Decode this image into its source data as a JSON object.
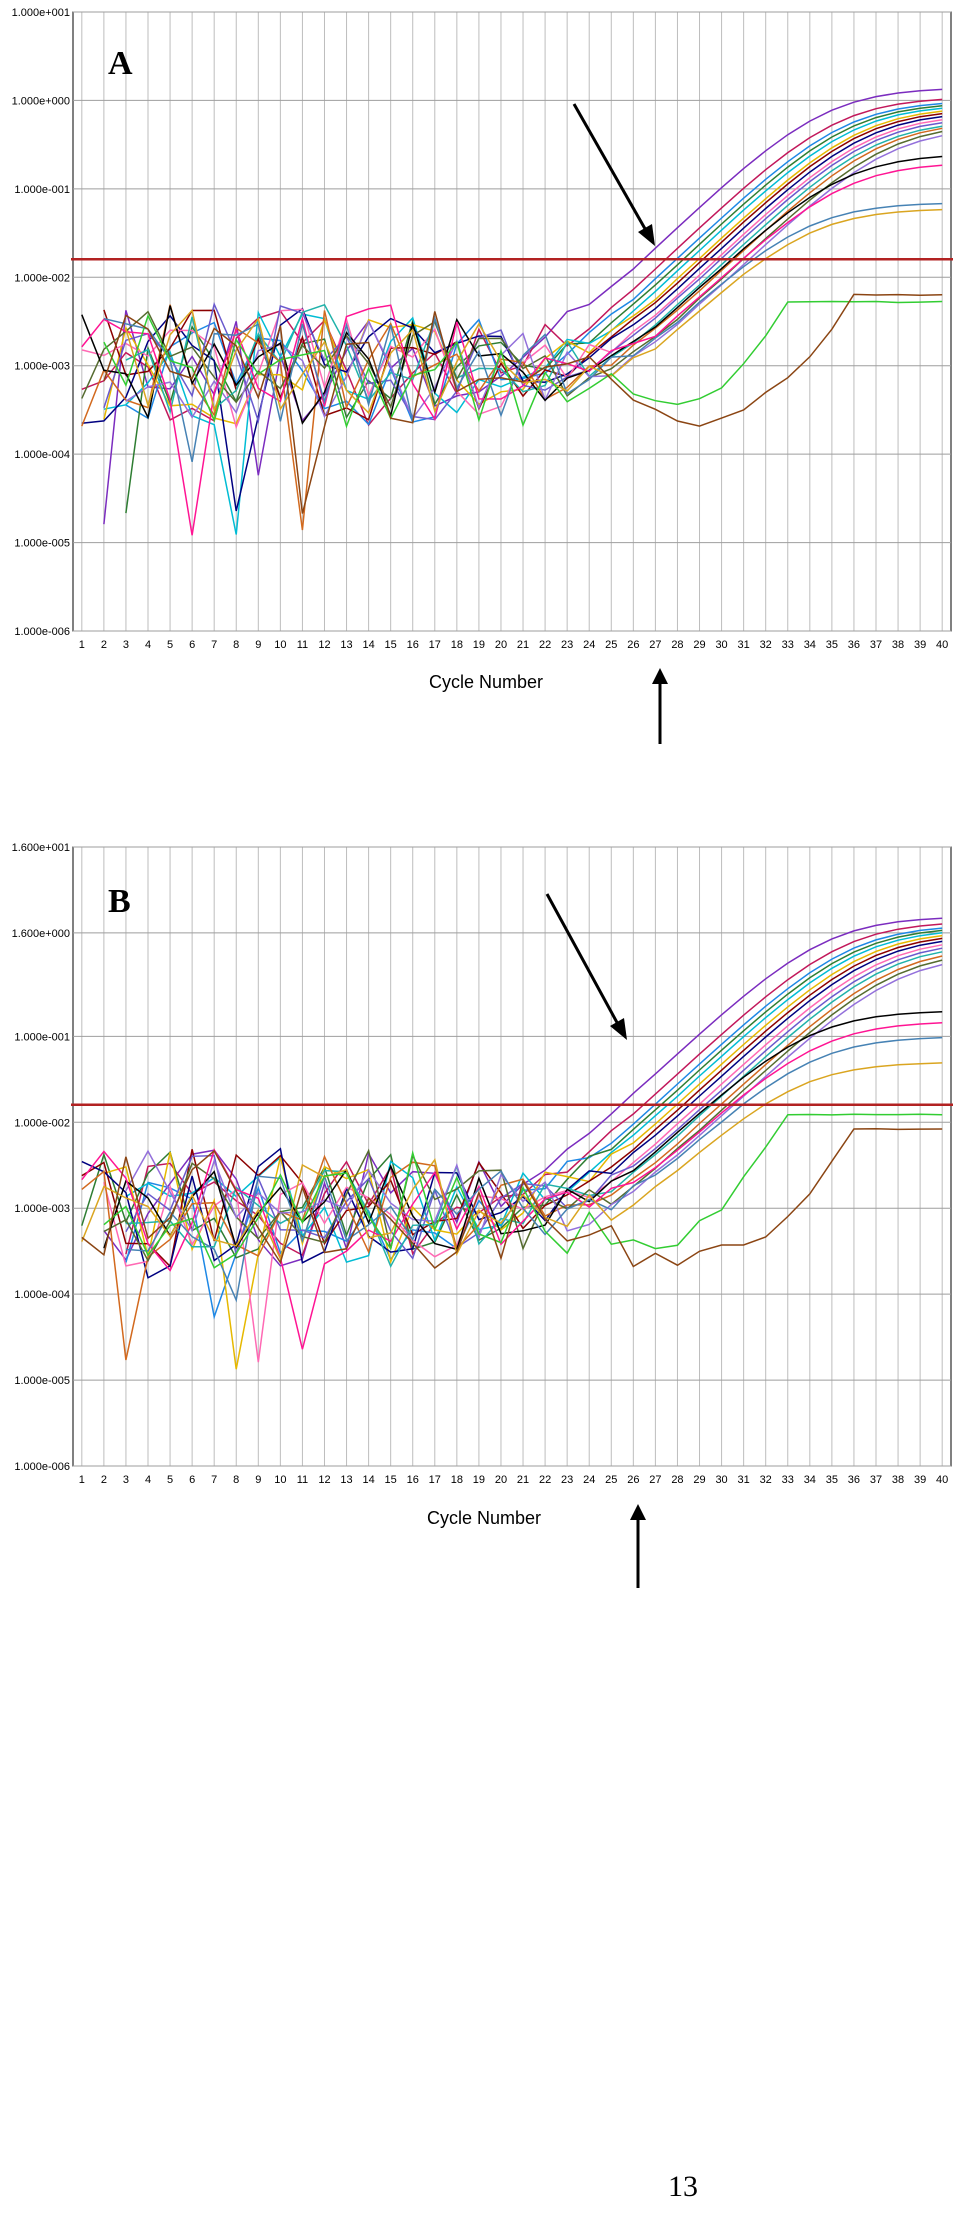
{
  "page_number": "13",
  "chart_data": [
    {
      "type": "line",
      "panel_label": "A",
      "xlabel": "Cycle Number",
      "ylabel": "",
      "y_scale": "log",
      "xlim": [
        1,
        40
      ],
      "ylim": [
        1e-06,
        10
      ],
      "y_ticks": [
        {
          "value": 10,
          "label": "1.000e+001"
        },
        {
          "value": 1,
          "label": "1.000e+000"
        },
        {
          "value": 0.1,
          "label": "1.000e-001"
        },
        {
          "value": 0.01,
          "label": "1.000e-002"
        },
        {
          "value": 0.001,
          "label": "1.000e-003"
        },
        {
          "value": 0.0001,
          "label": "1.000e-004"
        },
        {
          "value": 1e-05,
          "label": "1.000e-005"
        },
        {
          "value": 1e-06,
          "label": "1.000e-006"
        }
      ],
      "x_ticks": [
        "1",
        "2",
        "3",
        "4",
        "5",
        "6",
        "7",
        "8",
        "9",
        "10",
        "11",
        "12",
        "13",
        "14",
        "15",
        "16",
        "17",
        "18",
        "19",
        "20",
        "21",
        "22",
        "23",
        "24",
        "25",
        "26",
        "27",
        "28",
        "29",
        "30",
        "31",
        "32",
        "33",
        "34",
        "35",
        "36",
        "37",
        "38",
        "39",
        "40"
      ],
      "grid": true,
      "threshold": 0.016,
      "threshold_color": "#b22222",
      "annotation_cycle": 27,
      "series_colors": [
        "#7b2cbf",
        "#c2185b",
        "#1e88e5",
        "#2e7d32",
        "#00bcd4",
        "#e6b800",
        "#8b0000",
        "#000080",
        "#ff69b4",
        "#6a5acd",
        "#20b2aa",
        "#d2691e",
        "#556b2f",
        "#9370db",
        "#000000",
        "#ff1493",
        "#4682b4",
        "#daa520",
        "#32cd32",
        "#8b4513"
      ],
      "series_plateau": [
        1.4,
        1.1,
        1.0,
        0.95,
        0.9,
        0.85,
        0.8,
        0.75,
        0.7,
        0.65,
        0.6,
        0.58,
        0.55,
        0.5,
        0.25,
        0.2,
        0.07,
        0.06,
        0.005,
        0.006
      ],
      "series_ct": [
        26.5,
        27.5,
        28,
        28.3,
        28.6,
        29,
        29.2,
        29.5,
        29.8,
        30,
        30.3,
        30.6,
        31,
        31.3,
        30.5,
        31,
        31.5,
        32,
        33,
        36
      ]
    },
    {
      "type": "line",
      "panel_label": "B",
      "xlabel": "Cycle Number",
      "ylabel": "",
      "y_scale": "log",
      "xlim": [
        1,
        40
      ],
      "ylim": [
        1e-06,
        16
      ],
      "y_ticks": [
        {
          "value": 16,
          "label": "1.600e+001"
        },
        {
          "value": 1.6,
          "label": "1.600e+000"
        },
        {
          "value": 0.1,
          "label": "1.000e-001"
        },
        {
          "value": 0.01,
          "label": "1.000e-002"
        },
        {
          "value": 0.001,
          "label": "1.000e-003"
        },
        {
          "value": 0.0001,
          "label": "1.000e-004"
        },
        {
          "value": 1e-05,
          "label": "1.000e-005"
        },
        {
          "value": 1e-06,
          "label": "1.000e-006"
        }
      ],
      "x_ticks": [
        "1",
        "2",
        "3",
        "4",
        "5",
        "6",
        "7",
        "8",
        "9",
        "10",
        "11",
        "12",
        "13",
        "14",
        "15",
        "16",
        "17",
        "18",
        "19",
        "20",
        "21",
        "22",
        "23",
        "24",
        "25",
        "26",
        "27",
        "28",
        "29",
        "30",
        "31",
        "32",
        "33",
        "34",
        "35",
        "36",
        "37",
        "38",
        "39",
        "40"
      ],
      "grid": true,
      "threshold": 0.016,
      "threshold_color": "#b22222",
      "annotation_cycle": 26,
      "series_colors": [
        "#7b2cbf",
        "#c2185b",
        "#1e88e5",
        "#2e7d32",
        "#00bcd4",
        "#e6b800",
        "#8b0000",
        "#000080",
        "#ff69b4",
        "#6a5acd",
        "#20b2aa",
        "#d2691e",
        "#556b2f",
        "#9370db",
        "#000000",
        "#ff1493",
        "#4682b4",
        "#daa520",
        "#32cd32",
        "#8b4513"
      ],
      "series_plateau": [
        2.5,
        2.2,
        2.0,
        1.9,
        1.8,
        1.7,
        1.6,
        1.5,
        1.4,
        1.3,
        1.2,
        1.1,
        1.0,
        0.9,
        0.2,
        0.15,
        0.1,
        0.05,
        0.012,
        0.008
      ],
      "series_ct": [
        25.5,
        26.5,
        27,
        27.3,
        27.6,
        28,
        28.3,
        28.6,
        29,
        29.3,
        29.6,
        30,
        30.3,
        30.6,
        29.5,
        30.5,
        31,
        32,
        33,
        36
      ]
    }
  ]
}
